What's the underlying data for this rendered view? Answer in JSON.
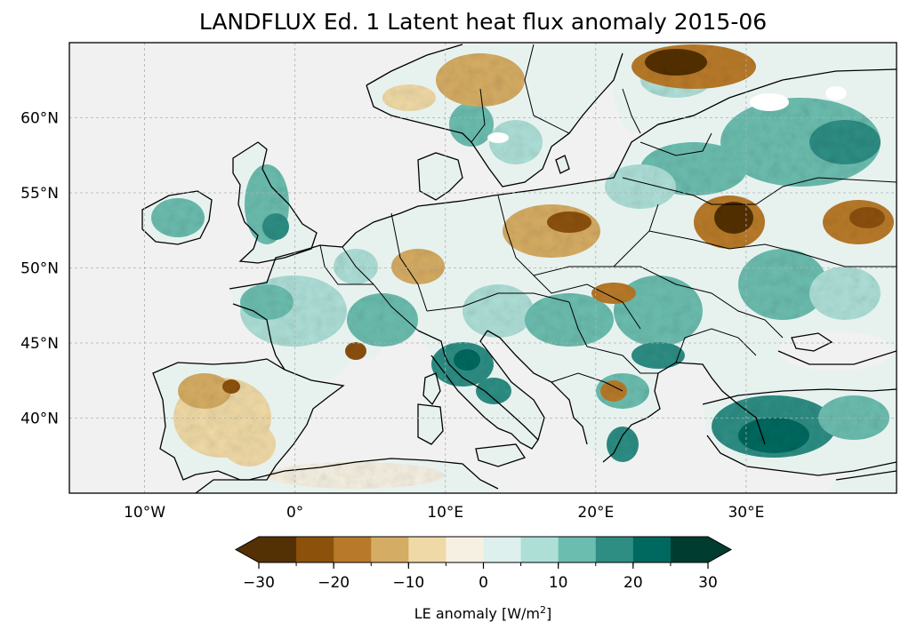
{
  "title": "LANDFLUX Ed. 1 Latent heat flux anomaly 2015-06",
  "map": {
    "lon_range": [
      -15,
      40
    ],
    "lat_range": [
      35,
      65
    ],
    "ocean_color": "#f1f1f1",
    "gridlines": true,
    "x_ticks": [
      {
        "value": -10,
        "label": "10°W"
      },
      {
        "value": 0,
        "label": "0°"
      },
      {
        "value": 10,
        "label": "10°E"
      },
      {
        "value": 20,
        "label": "20°E"
      },
      {
        "value": 30,
        "label": "30°E"
      }
    ],
    "y_ticks": [
      {
        "value": 60,
        "label": "60°N"
      },
      {
        "value": 55,
        "label": "55°N"
      },
      {
        "value": 50,
        "label": "50°N"
      },
      {
        "value": 45,
        "label": "45°N"
      },
      {
        "value": 40,
        "label": "40°N"
      }
    ]
  },
  "colorbar": {
    "label_text": "LE anomaly [W/m",
    "label_sup": "2",
    "label_end": "]",
    "extend": "both",
    "boundaries": [
      -30,
      -25,
      -20,
      -15,
      -10,
      -5,
      0,
      5,
      10,
      15,
      20,
      25,
      30
    ],
    "colors": [
      "#543005",
      "#8c510a",
      "#b87a2a",
      "#d5ac63",
      "#efd9a6",
      "#f5f0e1",
      "#def0ee",
      "#addfd7",
      "#6bbdaf",
      "#2e8e84",
      "#00695f",
      "#003c30"
    ],
    "under_color": "#543005",
    "over_color": "#003c30",
    "tick_labels": [
      {
        "value": -30,
        "label": "−30"
      },
      {
        "value": -20,
        "label": "−20"
      },
      {
        "value": -10,
        "label": "−10"
      },
      {
        "value": 0,
        "label": "0"
      },
      {
        "value": 10,
        "label": "10"
      },
      {
        "value": 20,
        "label": "20"
      },
      {
        "value": 30,
        "label": "30"
      }
    ]
  }
}
